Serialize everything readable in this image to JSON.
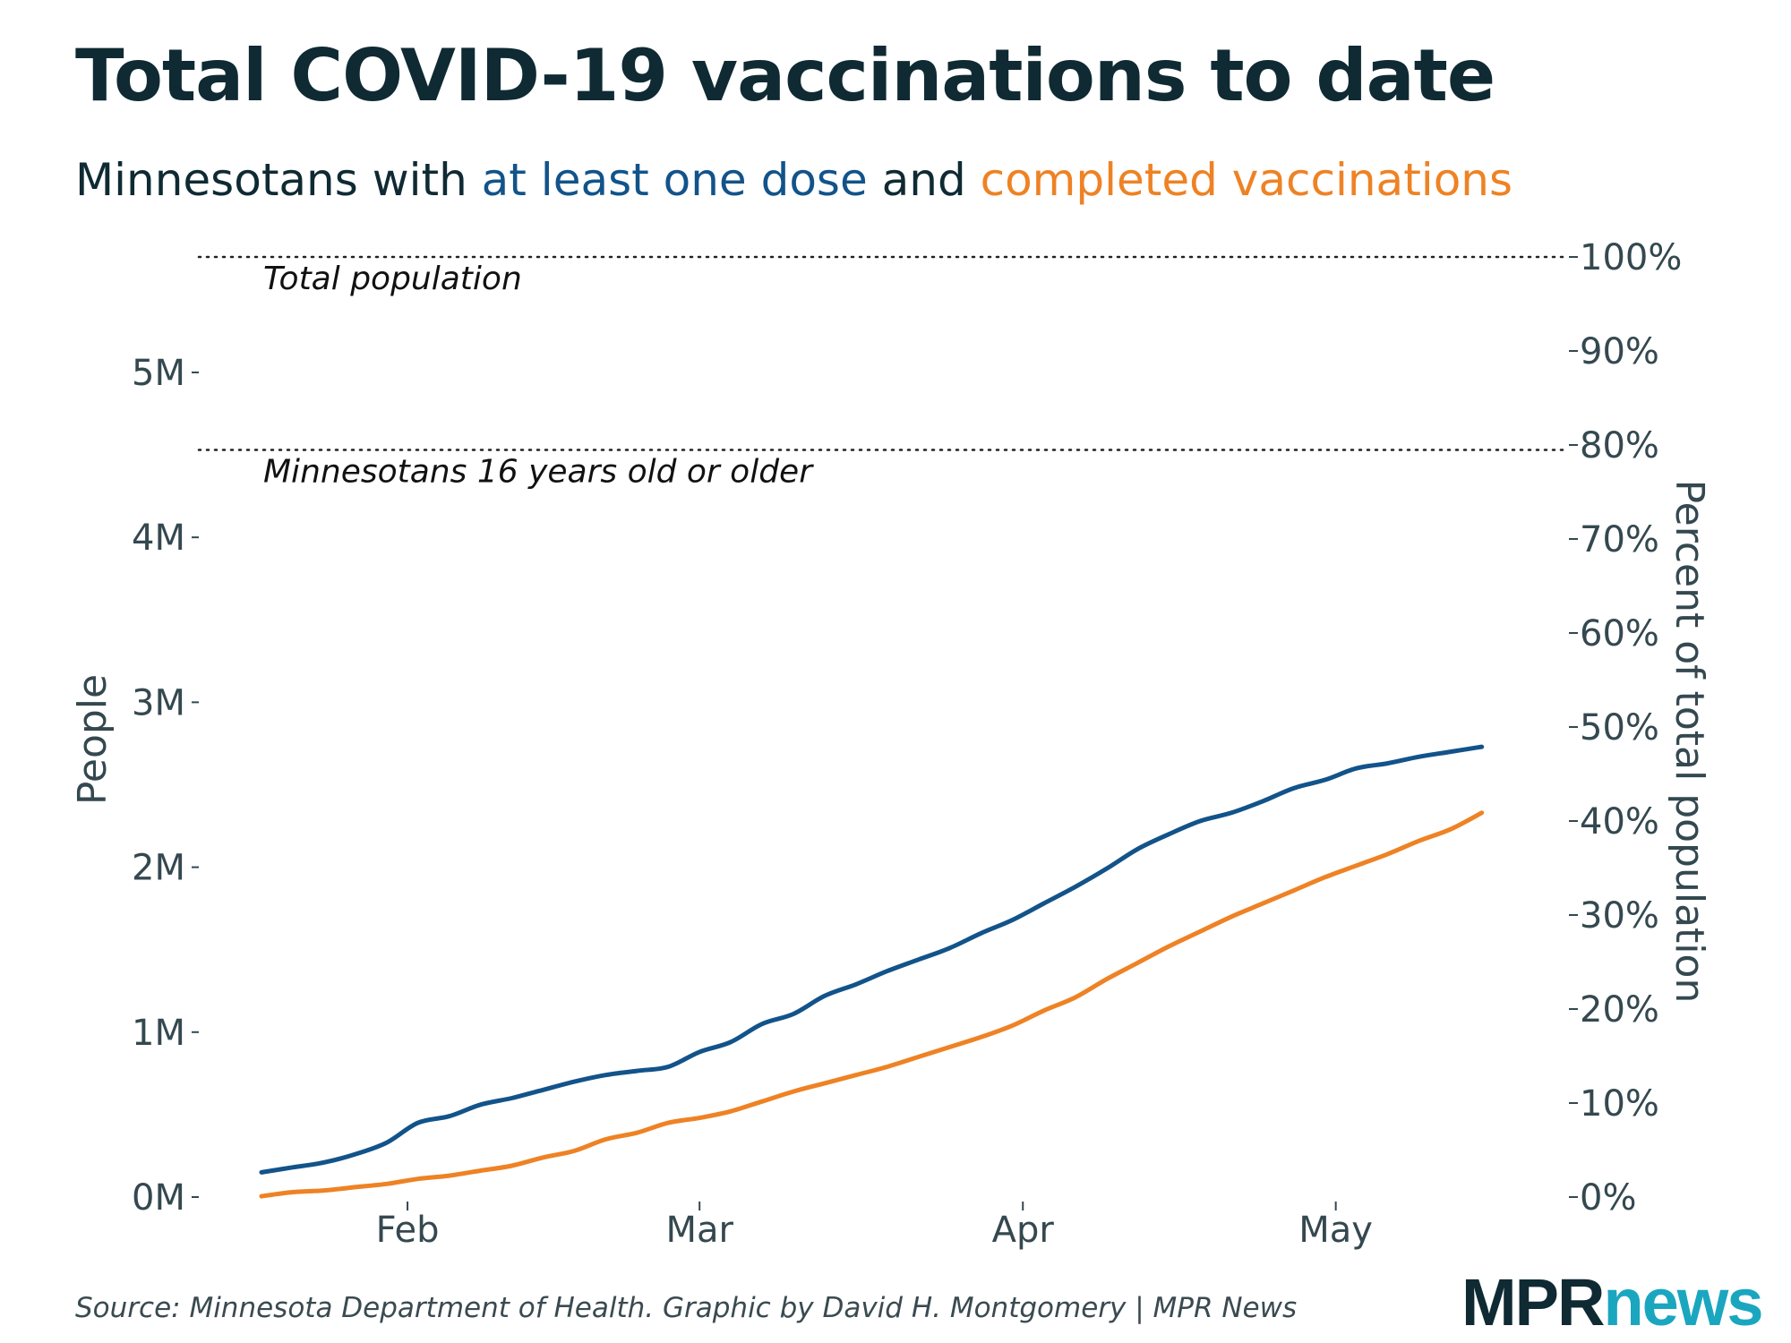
{
  "title": "Total COVID-19 vaccinations to date",
  "subtitle": {
    "prefix": "Minnesotans with ",
    "series1_text": "at least one dose",
    "middle": " and ",
    "series2_text": "completed vaccinations"
  },
  "colors": {
    "one_dose": "#12538a",
    "completed": "#ee8224",
    "text": "#0f2a33",
    "axis": "#34484f"
  },
  "source": "Source: Minnesota Department of Health. Graphic by David H. Montgomery | MPR News",
  "logo": {
    "mpr": "MPR",
    "news": "news"
  },
  "chart_data": {
    "type": "line",
    "ylabel": "People",
    "y2label": "Percent of total population",
    "ylim": [
      0,
      5700000
    ],
    "yticks": [
      0,
      1000000,
      2000000,
      3000000,
      4000000,
      5000000
    ],
    "ytick_labels": [
      "0M",
      "1M",
      "2M",
      "3M",
      "4M",
      "5M"
    ],
    "y2lim": [
      0,
      100
    ],
    "y2ticks": [
      0,
      10,
      20,
      30,
      40,
      50,
      60,
      70,
      80,
      90,
      100
    ],
    "y2tick_labels": [
      "0%",
      "10%",
      "20%",
      "30%",
      "40%",
      "50%",
      "60%",
      "70%",
      "80%",
      "90%",
      "100%"
    ],
    "xlim": [
      "2021-01-18",
      "2021-05-17"
    ],
    "xticks": [
      "2021-02-01",
      "2021-03-01",
      "2021-04-01",
      "2021-05-01"
    ],
    "xtick_labels": [
      "Feb",
      "Mar",
      "Apr",
      "May"
    ],
    "reference_lines": [
      {
        "label": "Total population",
        "value": 5700000
      },
      {
        "label": "Minnesotans 16 years old or older",
        "value": 4530000
      }
    ],
    "series": [
      {
        "key": "one_dose",
        "x": [
          "2021-01-18",
          "2021-01-21",
          "2021-01-24",
          "2021-01-27",
          "2021-01-30",
          "2021-02-02",
          "2021-02-05",
          "2021-02-08",
          "2021-02-11",
          "2021-02-14",
          "2021-02-17",
          "2021-02-20",
          "2021-02-23",
          "2021-02-26",
          "2021-03-01",
          "2021-03-04",
          "2021-03-07",
          "2021-03-10",
          "2021-03-13",
          "2021-03-16",
          "2021-03-19",
          "2021-03-22",
          "2021-03-25",
          "2021-03-28",
          "2021-03-31",
          "2021-04-03",
          "2021-04-06",
          "2021-04-09",
          "2021-04-12",
          "2021-04-15",
          "2021-04-18",
          "2021-04-21",
          "2021-04-24",
          "2021-04-27",
          "2021-04-30",
          "2021-05-03",
          "2021-05-06",
          "2021-05-09",
          "2021-05-12",
          "2021-05-15"
        ],
        "values": [
          150000,
          180000,
          210000,
          260000,
          330000,
          450000,
          490000,
          560000,
          600000,
          650000,
          700000,
          740000,
          765000,
          790000,
          880000,
          940000,
          1050000,
          1110000,
          1220000,
          1290000,
          1370000,
          1440000,
          1510000,
          1600000,
          1680000,
          1780000,
          1880000,
          1990000,
          2110000,
          2200000,
          2280000,
          2330000,
          2400000,
          2480000,
          2530000,
          2600000,
          2630000,
          2670000,
          2700000,
          2730000
        ]
      },
      {
        "key": "completed",
        "x": [
          "2021-01-18",
          "2021-01-21",
          "2021-01-24",
          "2021-01-27",
          "2021-01-30",
          "2021-02-02",
          "2021-02-05",
          "2021-02-08",
          "2021-02-11",
          "2021-02-14",
          "2021-02-17",
          "2021-02-20",
          "2021-02-23",
          "2021-02-26",
          "2021-03-01",
          "2021-03-04",
          "2021-03-07",
          "2021-03-10",
          "2021-03-13",
          "2021-03-16",
          "2021-03-19",
          "2021-03-22",
          "2021-03-25",
          "2021-03-28",
          "2021-03-31",
          "2021-04-03",
          "2021-04-06",
          "2021-04-09",
          "2021-04-12",
          "2021-04-15",
          "2021-04-18",
          "2021-04-21",
          "2021-04-24",
          "2021-04-27",
          "2021-04-30",
          "2021-05-03",
          "2021-05-06",
          "2021-05-09",
          "2021-05-12",
          "2021-05-15"
        ],
        "values": [
          5000,
          30000,
          40000,
          60000,
          80000,
          110000,
          130000,
          160000,
          190000,
          240000,
          280000,
          350000,
          390000,
          450000,
          480000,
          520000,
          580000,
          640000,
          690000,
          740000,
          790000,
          850000,
          910000,
          970000,
          1040000,
          1130000,
          1210000,
          1320000,
          1420000,
          1520000,
          1610000,
          1700000,
          1780000,
          1860000,
          1940000,
          2010000,
          2080000,
          2160000,
          2230000,
          2330000
        ]
      }
    ]
  }
}
